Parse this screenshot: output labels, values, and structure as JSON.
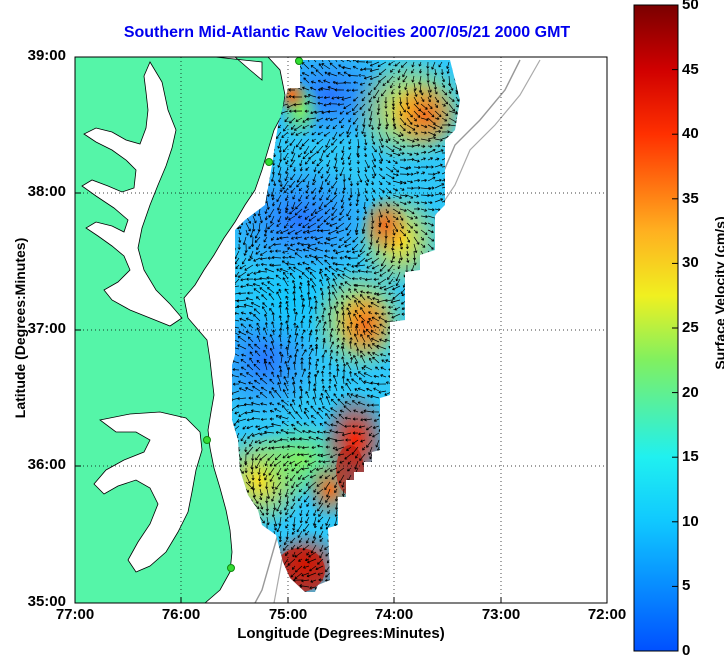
{
  "title": "Southern Mid-Atlantic Raw Velocities 2007/05/21 2000 GMT",
  "xlabel": "Longitude (Degrees:Minutes)",
  "ylabel": "Latitude (Degrees:Minutes)",
  "colorbar_label": "Surface Velocity (cm/s)",
  "x_ticks": [
    "77:00",
    "76:00",
    "75:00",
    "74:00",
    "73:00",
    "72:00"
  ],
  "y_ticks": [
    "39:00",
    "38:00",
    "37:00",
    "36:00",
    "35:00"
  ],
  "colorbar_ticks": [
    "50",
    "45",
    "40",
    "35",
    "30",
    "25",
    "20",
    "15",
    "10",
    "5",
    "0"
  ],
  "chart_data": {
    "type": "heatmap",
    "title": "Southern Mid-Atlantic Raw Velocities 2007/05/21 2000 GMT",
    "xlabel": "Longitude (Degrees:Minutes)",
    "ylabel": "Latitude (Degrees:Minutes)",
    "xlim": [
      -77,
      -72
    ],
    "ylim": [
      35,
      39
    ],
    "color_range": [
      0,
      50
    ],
    "color_units": "cm/s",
    "grid": true,
    "colors": {
      "land": "#55f5a8",
      "title": "#0000ee",
      "station": "#33dd33"
    }
  }
}
